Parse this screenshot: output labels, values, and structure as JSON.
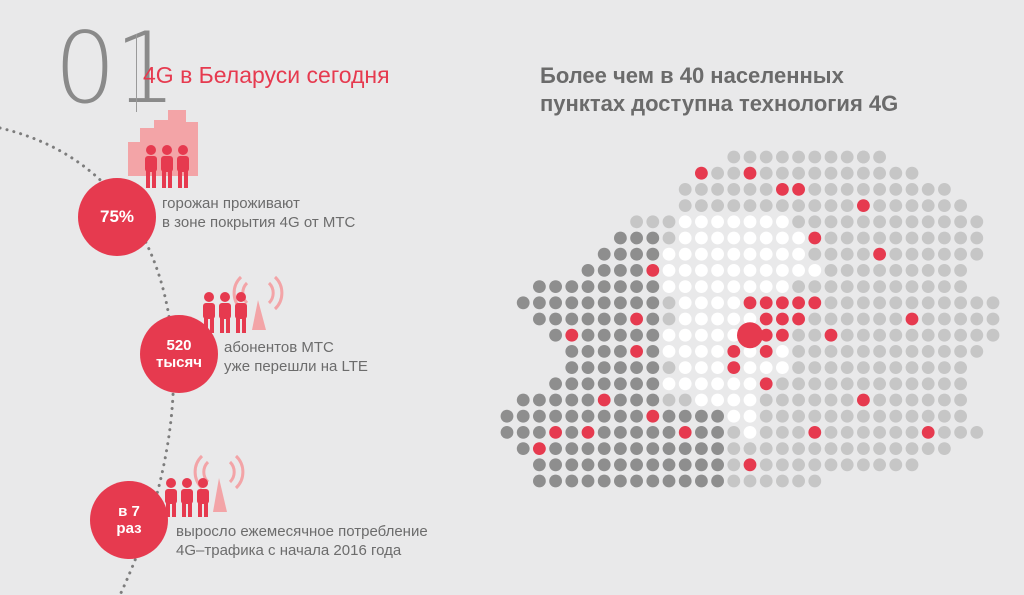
{
  "header": {
    "number": "01",
    "title": "4G в Беларуси сегодня"
  },
  "map_heading": {
    "line1": "Более чем в 40 населенных",
    "line2": "пунктах доступна технология 4G"
  },
  "stats": [
    {
      "value": "75%",
      "text_line1": "горожан проживают",
      "text_line2": "в зоне покрытия 4G от МТС"
    },
    {
      "value_line1": "520",
      "value_line2": "тысяч",
      "text_line1": "абонентов МТС",
      "text_line2": "уже перешли на LTE"
    },
    {
      "value_line1": "в 7",
      "value_line2": "раз",
      "text_line1": "выросло ежемесячное потребление",
      "text_line2": "4G–трафика с начала 2016 года"
    }
  ],
  "colors": {
    "accent": "#e63a4f",
    "accent_light": "#f3a4a7",
    "background": "#e9e9ea",
    "dot_light": "#c6c6c6",
    "dot_dark": "#8e8e8e",
    "dot_white": "#ffffff",
    "text_gray": "#6c6c6c"
  },
  "icons": {
    "buildings": "city-buildings-icon",
    "people": "people-group-icon",
    "antenna": "signal-antenna-icon"
  }
}
